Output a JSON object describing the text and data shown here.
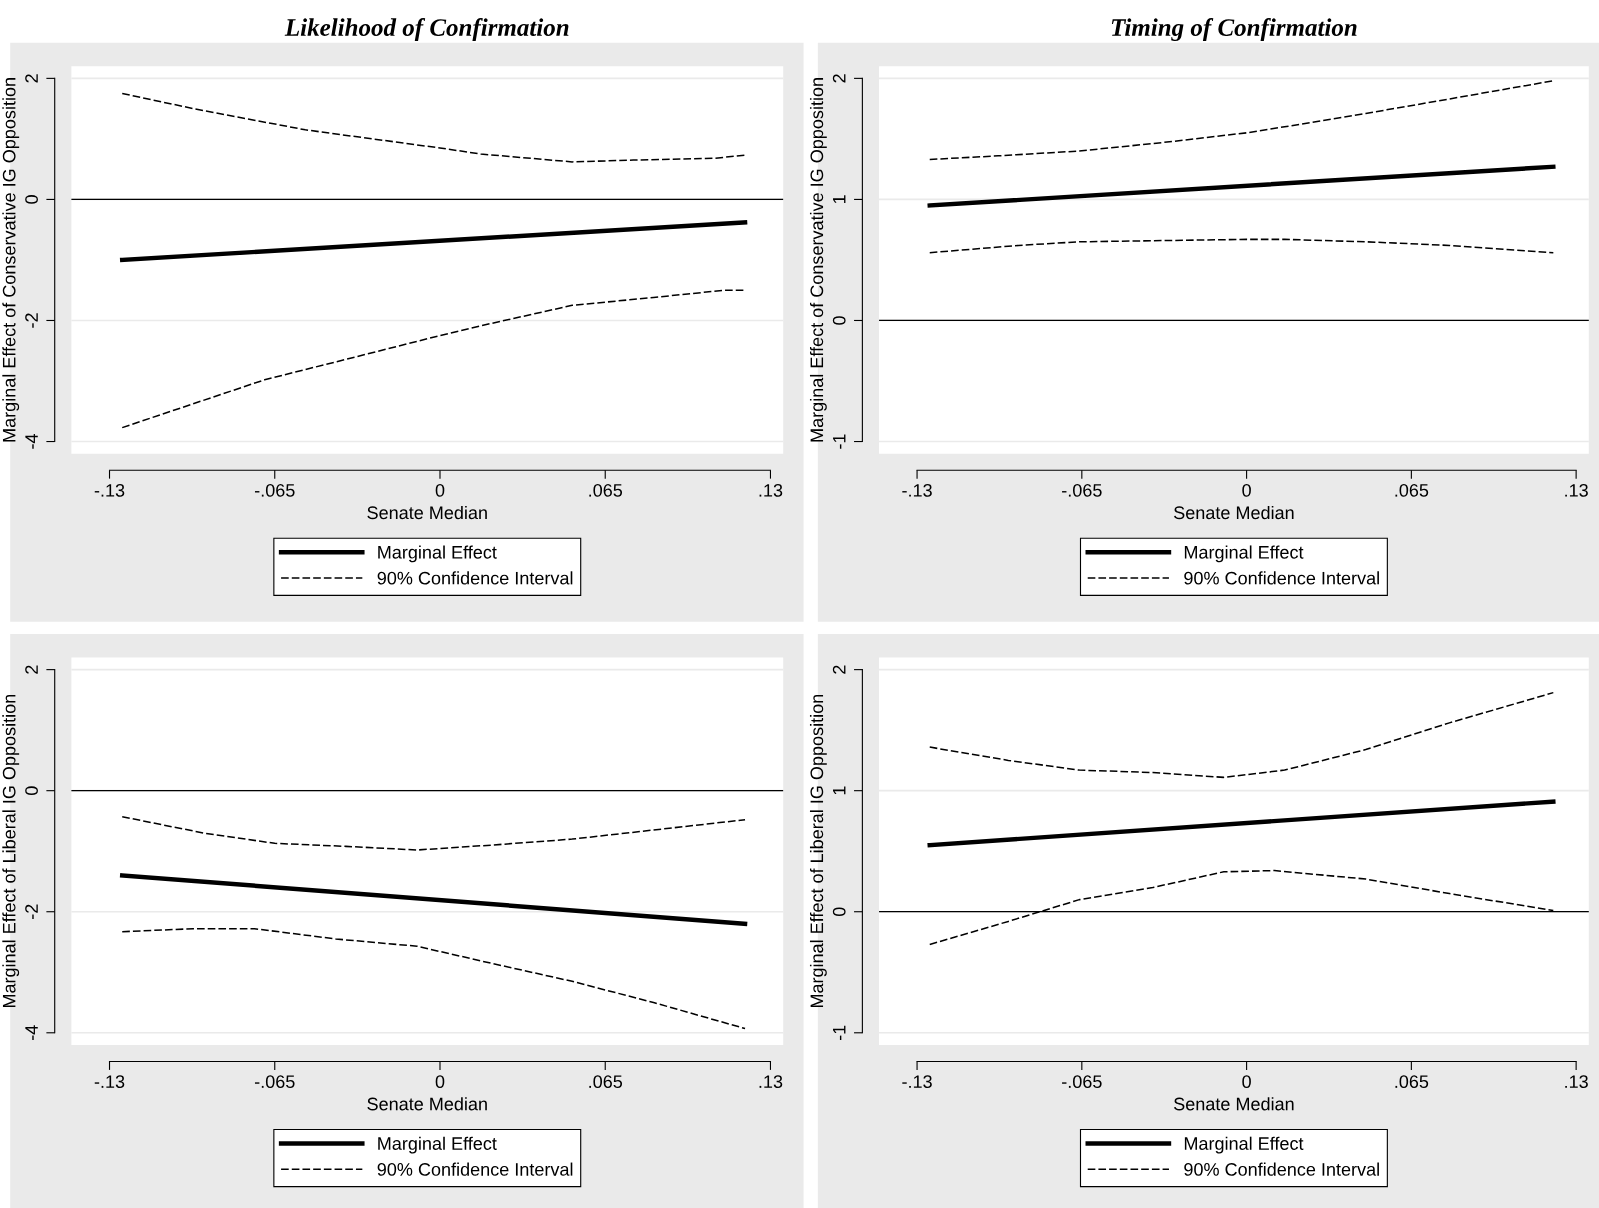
{
  "chart_data": [
    {
      "type": "line",
      "title": "Likelihood of Confirmation",
      "xlabel": "Senate Median",
      "ylabel": "Marginal Effect of Conservative IG Opposition",
      "xlim": [
        -0.145,
        0.135
      ],
      "ylim": [
        -4.2,
        2.2
      ],
      "xticks": [
        {
          "value": -0.13,
          "label": "-.13"
        },
        {
          "value": -0.065,
          "label": "-.065"
        },
        0,
        {
          "value": 0.065,
          "label": ".065"
        },
        {
          "value": 0.13,
          "label": ".13"
        }
      ],
      "yticks": [
        -4,
        -2,
        0,
        2
      ],
      "grid": "y",
      "legend": "bottom",
      "ref_lines": [
        {
          "axis": "y",
          "value": 0,
          "color": "#000000"
        }
      ],
      "series": [
        {
          "name": "Marginal Effect",
          "color": "#000000",
          "line_style": "solid",
          "x": [
            -0.125,
            0.12
          ],
          "values": [
            -1.0,
            -0.38
          ]
        },
        {
          "name": "90% Confidence Interval",
          "color": "#000000",
          "line_style": "dashed",
          "x": [
            -0.125,
            -0.097,
            -0.053,
            0,
            0.016,
            0.052,
            0.076,
            0.108,
            0.12
          ],
          "values": [
            1.75,
            1.5,
            1.15,
            0.85,
            0.75,
            0.62,
            0.65,
            0.68,
            0.73
          ]
        },
        {
          "color": "#000000",
          "line_style": "dashed",
          "x": [
            -0.125,
            -0.069,
            -0.033,
            0,
            0.02,
            0.052,
            0.084,
            0.112,
            0.12
          ],
          "values": [
            -3.77,
            -2.98,
            -2.6,
            -2.25,
            -2.05,
            -1.75,
            -1.62,
            -1.5,
            -1.5
          ]
        }
      ]
    },
    {
      "type": "line",
      "title": "Timing of Confirmation",
      "xlabel": "Senate Median",
      "ylabel": "Marginal Effect of Conservative IG Opposition",
      "xlim": [
        -0.145,
        0.135
      ],
      "ylim": [
        -1.1,
        2.1
      ],
      "xticks": [
        {
          "value": -0.13,
          "label": "-.13"
        },
        {
          "value": -0.065,
          "label": "-.065"
        },
        0,
        {
          "value": 0.065,
          "label": ".065"
        },
        {
          "value": 0.13,
          "label": ".13"
        }
      ],
      "yticks": [
        -1,
        0,
        1,
        2
      ],
      "grid": "y",
      "legend": "bottom",
      "ref_lines": [
        {
          "axis": "y",
          "value": 0,
          "color": "#000000"
        }
      ],
      "series": [
        {
          "name": "Marginal Effect",
          "color": "#000000",
          "line_style": "solid",
          "x": [
            -0.125,
            0.121
          ],
          "values": [
            0.95,
            1.27
          ]
        },
        {
          "name": "90% Confidence Interval",
          "color": "#000000",
          "line_style": "dashed",
          "x": [
            -0.125,
            -0.098,
            -0.066,
            -0.033,
            0,
            0.015,
            0.047,
            0.08,
            0.121
          ],
          "values": [
            1.33,
            1.36,
            1.4,
            1.47,
            1.55,
            1.6,
            1.71,
            1.83,
            1.98
          ]
        },
        {
          "color": "#000000",
          "line_style": "dashed",
          "x": [
            -0.125,
            -0.09,
            -0.066,
            -0.033,
            0,
            0.015,
            0.047,
            0.08,
            0.121
          ],
          "values": [
            0.56,
            0.62,
            0.65,
            0.66,
            0.67,
            0.67,
            0.65,
            0.62,
            0.56
          ]
        }
      ]
    },
    {
      "type": "line",
      "xlabel": "Senate Median",
      "ylabel": "Marginal Effect of Liberal IG Opposition",
      "xlim": [
        -0.145,
        0.135
      ],
      "ylim": [
        -4.2,
        2.2
      ],
      "xticks": [
        {
          "value": -0.13,
          "label": "-.13"
        },
        {
          "value": -0.065,
          "label": "-.065"
        },
        0,
        {
          "value": 0.065,
          "label": ".065"
        },
        {
          "value": 0.13,
          "label": ".13"
        }
      ],
      "yticks": [
        -4,
        -2,
        0,
        2
      ],
      "grid": "y",
      "legend": "bottom",
      "ref_lines": [
        {
          "axis": "y",
          "value": 0,
          "color": "#000000"
        }
      ],
      "series": [
        {
          "name": "Marginal Effect",
          "color": "#000000",
          "line_style": "solid",
          "x": [
            -0.125,
            0.12
          ],
          "values": [
            -1.4,
            -2.2
          ]
        },
        {
          "name": "90% Confidence Interval",
          "color": "#000000",
          "line_style": "dashed",
          "x": [
            -0.125,
            -0.093,
            -0.065,
            -0.037,
            -0.009,
            0.02,
            0.052,
            0.084,
            0.12
          ],
          "values": [
            -0.43,
            -0.7,
            -0.87,
            -0.92,
            -0.98,
            -0.9,
            -0.8,
            -0.65,
            -0.48
          ]
        },
        {
          "color": "#000000",
          "line_style": "dashed",
          "x": [
            -0.125,
            -0.097,
            -0.073,
            -0.041,
            -0.009,
            0.02,
            0.052,
            0.084,
            0.12
          ],
          "values": [
            -2.33,
            -2.28,
            -2.28,
            -2.45,
            -2.57,
            -2.85,
            -3.15,
            -3.5,
            -3.93
          ]
        }
      ]
    },
    {
      "type": "line",
      "xlabel": "Senate Median",
      "ylabel": "Marginal Effect of Liberal IG Opposition",
      "xlim": [
        -0.145,
        0.135
      ],
      "ylim": [
        -1.1,
        2.1
      ],
      "xticks": [
        {
          "value": -0.13,
          "label": "-.13"
        },
        {
          "value": -0.065,
          "label": "-.065"
        },
        0,
        {
          "value": 0.065,
          "label": ".065"
        },
        {
          "value": 0.13,
          "label": ".13"
        }
      ],
      "yticks": [
        -1,
        0,
        1,
        2
      ],
      "grid": "y",
      "legend": "bottom",
      "ref_lines": [
        {
          "axis": "y",
          "value": 0,
          "color": "#000000"
        }
      ],
      "series": [
        {
          "name": "Marginal Effect",
          "color": "#000000",
          "line_style": "solid",
          "x": [
            -0.125,
            0.121
          ],
          "values": [
            0.55,
            0.91
          ]
        },
        {
          "name": "90% Confidence Interval",
          "color": "#000000",
          "line_style": "dashed",
          "x": [
            -0.125,
            -0.094,
            -0.066,
            -0.037,
            -0.009,
            0.015,
            0.047,
            0.08,
            0.121
          ],
          "values": [
            1.36,
            1.25,
            1.17,
            1.15,
            1.11,
            1.17,
            1.34,
            1.56,
            1.81
          ]
        },
        {
          "color": "#000000",
          "line_style": "dashed",
          "x": [
            -0.125,
            -0.094,
            -0.066,
            -0.037,
            -0.009,
            0.011,
            0.047,
            0.08,
            0.121
          ],
          "values": [
            -0.27,
            -0.08,
            0.1,
            0.2,
            0.33,
            0.34,
            0.27,
            0.15,
            0.01
          ]
        }
      ]
    }
  ]
}
